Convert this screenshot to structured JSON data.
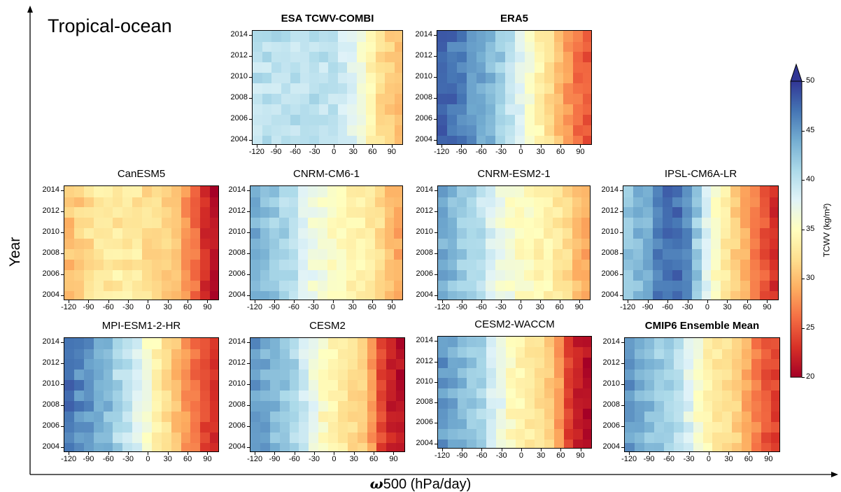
{
  "figure": {
    "region_label": "Tropical-ocean",
    "ylabel": "Year",
    "xlabel_symbol": "ω",
    "xlabel_rest": "500 (hPa/day)"
  },
  "colorbar": {
    "label": "TCWV (kg/m²)",
    "ticks": [
      "50",
      "45",
      "40",
      "35",
      "30",
      "25",
      "20"
    ],
    "range": [
      20,
      50
    ],
    "colormap": "RdYlBu",
    "extend": "max"
  },
  "chart_data": [
    {
      "type": "heatmap",
      "title": "ESA TCWV-COMBI",
      "title_bold": true,
      "y_ticks": [
        "2014",
        "2012",
        "2010",
        "2008",
        "2006",
        "2004"
      ],
      "x_ticks": [
        "-120",
        "-90",
        "-60",
        "-30",
        "0",
        "30",
        "60",
        "90"
      ],
      "years": [
        2004,
        2005,
        2006,
        2007,
        2008,
        2009,
        2010,
        2011,
        2012,
        2013,
        2014
      ],
      "omega": [
        -120,
        -105,
        -90,
        -75,
        -60,
        -45,
        -30,
        -15,
        0,
        15,
        30,
        45,
        60,
        75,
        90,
        100
      ],
      "profile": [
        40,
        40,
        40,
        40,
        40,
        40,
        40,
        40,
        40,
        39,
        38,
        36,
        34,
        32,
        31,
        30
      ]
    },
    {
      "type": "heatmap",
      "title": "ERA5",
      "title_bold": true,
      "y_ticks": [
        "2014",
        "2012",
        "2010",
        "2008",
        "2006",
        "2004"
      ],
      "x_ticks": [
        "-120",
        "-90",
        "-60",
        "-30",
        "0",
        "30",
        "60",
        "90"
      ],
      "years": [
        2004,
        2005,
        2006,
        2007,
        2008,
        2009,
        2010,
        2011,
        2012,
        2013,
        2014
      ],
      "omega": [
        -120,
        -105,
        -90,
        -75,
        -60,
        -45,
        -30,
        -15,
        0,
        15,
        30,
        45,
        60,
        75,
        90,
        100
      ],
      "profile": [
        48,
        47,
        46,
        45,
        44,
        43,
        42,
        40,
        38,
        36,
        34,
        32,
        30,
        28,
        26,
        25
      ]
    },
    {
      "type": "heatmap",
      "title": "CanESM5",
      "title_bold": false,
      "y_ticks": [
        "2014",
        "2012",
        "2010",
        "2008",
        "2006",
        "2004"
      ],
      "x_ticks": [
        "-120",
        "-90",
        "-60",
        "-30",
        "0",
        "30",
        "60",
        "90"
      ],
      "years": [
        2004,
        2005,
        2006,
        2007,
        2008,
        2009,
        2010,
        2011,
        2012,
        2013,
        2014
      ],
      "omega": [
        -120,
        -105,
        -90,
        -75,
        -60,
        -45,
        -30,
        -15,
        0,
        15,
        30,
        45,
        60,
        75,
        90,
        100
      ],
      "profile": [
        30,
        31,
        32,
        33,
        33,
        33,
        33,
        33,
        32,
        32,
        31,
        30,
        28,
        26,
        23,
        21
      ]
    },
    {
      "type": "heatmap",
      "title": "CNRM-CM6-1",
      "title_bold": false,
      "y_ticks": [
        "2014",
        "2012",
        "2010",
        "2008",
        "2006",
        "2004"
      ],
      "x_ticks": [
        "-120",
        "-90",
        "-60",
        "-30",
        "0",
        "30",
        "60",
        "90"
      ],
      "years": [
        2004,
        2005,
        2006,
        2007,
        2008,
        2009,
        2010,
        2011,
        2012,
        2013,
        2014
      ],
      "omega": [
        -120,
        -105,
        -90,
        -75,
        -60,
        -45,
        -30,
        -15,
        0,
        15,
        30,
        45,
        60,
        75,
        90,
        100
      ],
      "profile": [
        44,
        43,
        42,
        41,
        40,
        38,
        37,
        36,
        35,
        35,
        34,
        34,
        33,
        32,
        30,
        29
      ]
    },
    {
      "type": "heatmap",
      "title": "CNRM-ESM2-1",
      "title_bold": false,
      "y_ticks": [
        "2014",
        "2012",
        "2010",
        "2008",
        "2006",
        "2004"
      ],
      "x_ticks": [
        "-120",
        "-90",
        "-60",
        "-30",
        "0",
        "30",
        "60",
        "90"
      ],
      "years": [
        2004,
        2005,
        2006,
        2007,
        2008,
        2009,
        2010,
        2011,
        2012,
        2013,
        2014
      ],
      "omega": [
        -120,
        -105,
        -90,
        -75,
        -60,
        -45,
        -30,
        -15,
        0,
        15,
        30,
        45,
        60,
        75,
        90,
        100
      ],
      "profile": [
        44,
        43,
        42,
        41,
        40,
        38,
        37,
        36,
        35,
        35,
        34,
        34,
        33,
        32,
        30,
        29
      ]
    },
    {
      "type": "heatmap",
      "title": "IPSL-CM6A-LR",
      "title_bold": false,
      "y_ticks": [
        "2014",
        "2012",
        "2010",
        "2008",
        "2006",
        "2004"
      ],
      "x_ticks": [
        "-120",
        "-90",
        "-60",
        "-30",
        "0",
        "30",
        "60",
        "90"
      ],
      "years": [
        2004,
        2005,
        2006,
        2007,
        2008,
        2009,
        2010,
        2011,
        2012,
        2013,
        2014
      ],
      "omega": [
        -120,
        -105,
        -90,
        -75,
        -60,
        -45,
        -30,
        -15,
        0,
        15,
        30,
        45,
        60,
        75,
        90,
        100
      ],
      "profile": [
        42,
        43,
        44,
        46,
        47,
        47,
        46,
        42,
        38,
        35,
        33,
        31,
        29,
        27,
        25,
        23
      ]
    },
    {
      "type": "heatmap",
      "title": "MPI-ESM1-2-HR",
      "title_bold": false,
      "y_ticks": [
        "2014",
        "2012",
        "2010",
        "2008",
        "2006",
        "2004"
      ],
      "x_ticks": [
        "-120",
        "-90",
        "-60",
        "-30",
        "0",
        "30",
        "60",
        "90"
      ],
      "years": [
        2004,
        2005,
        2006,
        2007,
        2008,
        2009,
        2010,
        2011,
        2012,
        2013,
        2014
      ],
      "omega": [
        -120,
        -105,
        -90,
        -75,
        -60,
        -45,
        -30,
        -15,
        0,
        15,
        30,
        45,
        60,
        75,
        90,
        100
      ],
      "profile": [
        47,
        46,
        45,
        44,
        43,
        41,
        40,
        38,
        36,
        34,
        32,
        30,
        28,
        26,
        24,
        23
      ]
    },
    {
      "type": "heatmap",
      "title": "CESM2",
      "title_bold": false,
      "y_ticks": [
        "2014",
        "2012",
        "2010",
        "2008",
        "2006",
        "2004"
      ],
      "x_ticks": [
        "-120",
        "-90",
        "-60",
        "-30",
        "0",
        "30",
        "60",
        "90"
      ],
      "years": [
        2004,
        2005,
        2006,
        2007,
        2008,
        2009,
        2010,
        2011,
        2012,
        2013,
        2014
      ],
      "omega": [
        -120,
        -105,
        -90,
        -75,
        -60,
        -45,
        -30,
        -15,
        0,
        15,
        30,
        45,
        60,
        75,
        90,
        100
      ],
      "profile": [
        45,
        44,
        43,
        42,
        41,
        39,
        37,
        35,
        34,
        33,
        32,
        31,
        28,
        24,
        22,
        21
      ]
    },
    {
      "type": "heatmap",
      "title": "CESM2-WACCM",
      "title_bold": false,
      "y_ticks": [
        "2014",
        "2012",
        "2010",
        "2008",
        "2006",
        "2004"
      ],
      "x_ticks": [
        "-120",
        "-90",
        "-60",
        "-30",
        "0",
        "30",
        "60",
        "90"
      ],
      "years": [
        2004,
        2005,
        2006,
        2007,
        2008,
        2009,
        2010,
        2011,
        2012,
        2013,
        2014
      ],
      "omega": [
        -120,
        -105,
        -90,
        -75,
        -60,
        -45,
        -30,
        -15,
        0,
        15,
        30,
        45,
        60,
        75,
        90,
        100
      ],
      "profile": [
        45,
        44,
        43,
        42,
        41,
        39,
        37,
        35,
        34,
        33,
        32,
        31,
        28,
        24,
        22,
        21
      ]
    },
    {
      "type": "heatmap",
      "title": "CMIP6 Ensemble Mean",
      "title_bold": true,
      "y_ticks": [
        "2014",
        "2012",
        "2010",
        "2008",
        "2006",
        "2004"
      ],
      "x_ticks": [
        "-120",
        "-90",
        "-60",
        "-30",
        "0",
        "30",
        "60",
        "90"
      ],
      "years": [
        2004,
        2005,
        2006,
        2007,
        2008,
        2009,
        2010,
        2011,
        2012,
        2013,
        2014
      ],
      "omega": [
        -120,
        -105,
        -90,
        -75,
        -60,
        -45,
        -30,
        -15,
        0,
        15,
        30,
        45,
        60,
        75,
        90,
        100
      ],
      "profile": [
        45,
        44,
        43,
        42,
        41,
        40,
        38,
        36,
        34,
        33,
        32,
        31,
        29,
        27,
        25,
        24
      ]
    }
  ]
}
